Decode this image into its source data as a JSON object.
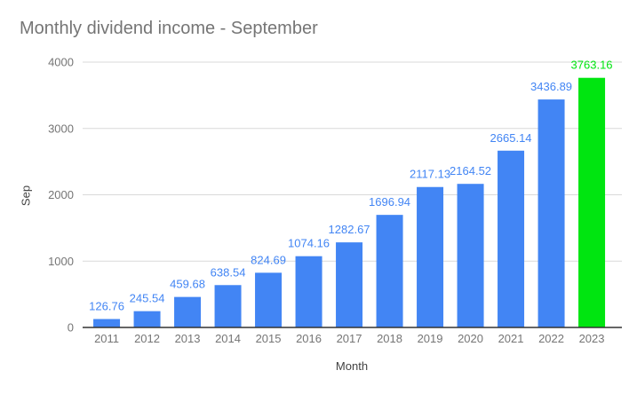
{
  "chart_data": {
    "type": "bar",
    "title": "Monthly dividend income - September",
    "xlabel": "Month",
    "ylabel": "Sep",
    "categories": [
      "2011",
      "2012",
      "2013",
      "2014",
      "2015",
      "2016",
      "2017",
      "2018",
      "2019",
      "2020",
      "2021",
      "2022",
      "2023"
    ],
    "values": [
      126.76,
      245.54,
      459.68,
      638.54,
      824.69,
      1074.16,
      1282.67,
      1696.94,
      2117.13,
      2164.52,
      2665.14,
      3436.89,
      3763.16
    ],
    "value_labels": [
      "126.76",
      "245.54",
      "459.68",
      "638.54",
      "824.69",
      "1074.16",
      "1282.67",
      "1696.94",
      "2117.13",
      "2164.52",
      "2665.14",
      "3436.89",
      "3763.16"
    ],
    "ylim": [
      0,
      4000
    ],
    "yticks": [
      0,
      1000,
      2000,
      3000,
      4000
    ],
    "grid": true,
    "legend": "none",
    "highlight_index": 12,
    "colors": {
      "bar": "#4285f4",
      "highlight": "#00e510",
      "gridline": "#d9d9d9",
      "axis_line": "#333333",
      "tick_text": "#757575",
      "axis_title_text": "#424242",
      "chart_title_text": "#757575"
    }
  }
}
